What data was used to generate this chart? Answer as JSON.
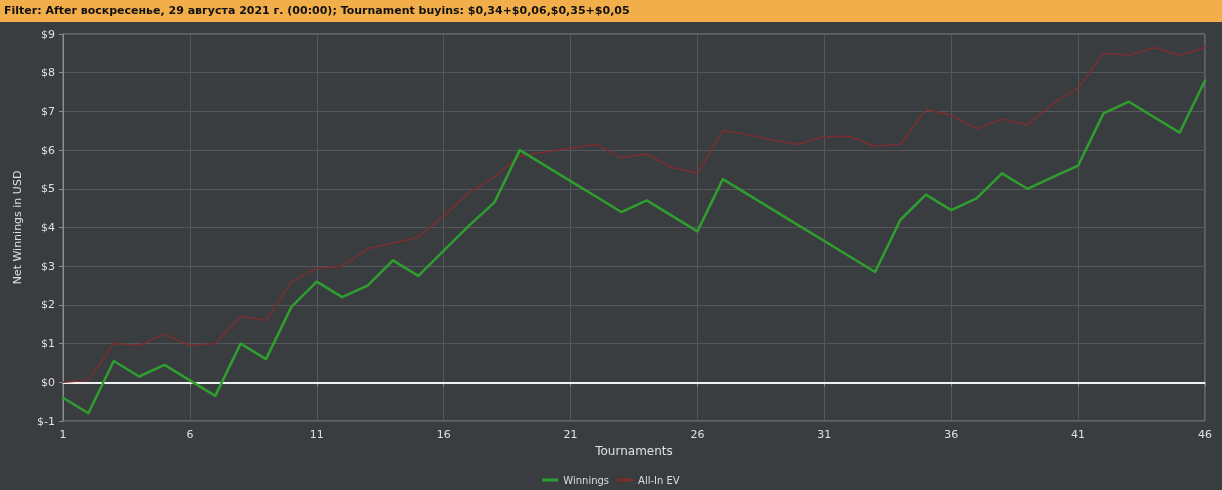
{
  "chart_data": {
    "type": "line",
    "title": "Filter: After воскресенье, 29 августа 2021 г. (00:00); Tournament buyins: $0,34+$0,06,$0,35+$0,05",
    "xlabel": "Tournaments",
    "ylabel": "Net Winnings in USD",
    "x": [
      1,
      2,
      3,
      4,
      5,
      6,
      7,
      8,
      9,
      10,
      11,
      12,
      13,
      14,
      15,
      16,
      17,
      18,
      19,
      20,
      21,
      22,
      23,
      24,
      25,
      26,
      27,
      28,
      29,
      30,
      31,
      32,
      33,
      34,
      35,
      36,
      37,
      38,
      39,
      40,
      41,
      42,
      43,
      44,
      45,
      46
    ],
    "series": [
      {
        "name": "Winnings",
        "color": "#2e9e2e",
        "values": [
          -0.4,
          -0.8,
          0.55,
          0.15,
          0.45,
          0.05,
          -0.35,
          1.0,
          0.6,
          1.95,
          2.6,
          2.2,
          2.5,
          3.15,
          2.75,
          3.4,
          4.05,
          4.65,
          6.0,
          5.6,
          5.2,
          4.8,
          4.4,
          4.7,
          4.3,
          3.9,
          5.25,
          4.85,
          4.45,
          4.05,
          3.65,
          3.25,
          2.85,
          4.2,
          4.85,
          4.45,
          4.75,
          5.4,
          5.0,
          5.3,
          5.6,
          6.95,
          7.25,
          6.85,
          6.45,
          7.8
        ]
      },
      {
        "name": "All-In EV",
        "color": "#7a2e30",
        "values": [
          0,
          0.05,
          1.0,
          0.95,
          1.25,
          0.95,
          1.0,
          1.7,
          1.6,
          2.6,
          2.95,
          3.0,
          3.45,
          3.6,
          3.75,
          4.3,
          4.9,
          5.3,
          5.85,
          5.95,
          6.05,
          6.15,
          5.8,
          5.9,
          5.55,
          5.4,
          6.5,
          6.4,
          6.25,
          6.15,
          6.35,
          6.35,
          6.1,
          6.15,
          7.05,
          6.9,
          6.55,
          6.8,
          6.65,
          7.2,
          7.6,
          8.5,
          8.45,
          8.65,
          8.45,
          8.65
        ]
      }
    ],
    "xlim": [
      1,
      46
    ],
    "xticks": [
      1,
      6,
      11,
      16,
      21,
      26,
      31,
      36,
      41,
      46
    ],
    "ylim": [
      -1,
      9
    ],
    "yticks": [
      {
        "value": -1,
        "label": "$-1"
      },
      {
        "value": 0,
        "label": "$0"
      },
      {
        "value": 1,
        "label": "$1"
      },
      {
        "value": 2,
        "label": "$2"
      },
      {
        "value": 3,
        "label": "$3"
      },
      {
        "value": 4,
        "label": "$4"
      },
      {
        "value": 5,
        "label": "$5"
      },
      {
        "value": 6,
        "label": "$6"
      },
      {
        "value": 7,
        "label": "$7"
      },
      {
        "value": 8,
        "label": "$8"
      },
      {
        "value": 9,
        "label": "$9"
      }
    ],
    "ref_lines": [
      {
        "axis": "y",
        "value": 0,
        "color": "#f0f0f0"
      }
    ],
    "grid": true,
    "legend": "bottom",
    "marker": "none",
    "line_style": "solid"
  }
}
